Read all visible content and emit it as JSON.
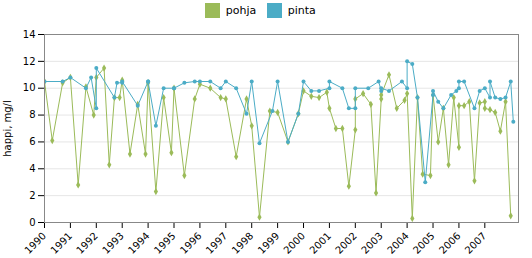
{
  "chart_data": {
    "type": "line",
    "ylabel": "happi, mg/l",
    "xlim": [
      1990,
      2008.3
    ],
    "xticks": [
      1990,
      1991,
      1992,
      1993,
      1994,
      1995,
      1996,
      1997,
      1998,
      1999,
      2000,
      2001,
      2002,
      2003,
      2004,
      2005,
      2006,
      2007
    ],
    "ylim": [
      0,
      14
    ],
    "yticks": [
      0,
      2,
      4,
      6,
      8,
      10,
      12,
      14
    ],
    "grid": "y",
    "legend": "upper center",
    "series": [
      {
        "name": "pohja",
        "color": "#9bbb59",
        "marker": "diamond",
        "x": [
          1990.0,
          1990.3,
          1990.7,
          1991.0,
          1991.3,
          1991.6,
          1991.9,
          1992.0,
          1992.3,
          1992.5,
          1992.7,
          1992.9,
          1993.0,
          1993.3,
          1993.6,
          1993.9,
          1994.0,
          1994.3,
          1994.6,
          1994.9,
          1995.0,
          1995.4,
          1995.8,
          1996.0,
          1996.4,
          1996.8,
          1997.0,
          1997.4,
          1997.8,
          1998.0,
          1998.3,
          1998.7,
          1999.0,
          1999.4,
          1999.8,
          2000.0,
          2000.3,
          2000.6,
          2000.9,
          2001.0,
          2001.25,
          2001.5,
          2001.75,
          2002.0,
          2002.0,
          2002.3,
          2002.6,
          2002.8,
          2003.0,
          2003.0,
          2003.3,
          2003.6,
          2003.9,
          2004.0,
          2004.2,
          2004.4,
          2004.6,
          2004.9,
          2005.0,
          2005.2,
          2005.4,
          2005.6,
          2005.8,
          2006.0,
          2006.0,
          2006.2,
          2006.4,
          2006.6,
          2006.8,
          2007.0,
          2007.0,
          2007.2,
          2007.4,
          2007.6,
          2007.8,
          2008.0
        ],
        "values": [
          10.5,
          6.1,
          10.4,
          10.8,
          2.8,
          10.1,
          8.0,
          10.8,
          11.5,
          4.3,
          9.3,
          9.3,
          10.6,
          5.1,
          8.8,
          5.1,
          10.4,
          2.3,
          9.3,
          5.2,
          10.0,
          3.5,
          9.2,
          10.3,
          10.0,
          9.3,
          9.2,
          4.9,
          9.2,
          7.2,
          0.4,
          8.3,
          8.2,
          6.0,
          8.1,
          9.8,
          9.4,
          9.3,
          9.7,
          8.5,
          7.0,
          7.0,
          2.7,
          6.9,
          9.2,
          9.6,
          8.8,
          2.2,
          9.2,
          9.5,
          11.0,
          8.5,
          9.1,
          9.6,
          0.3,
          9.3,
          3.6,
          3.5,
          9.5,
          6.0,
          8.5,
          4.3,
          9.3,
          5.6,
          8.7,
          8.7,
          9.0,
          3.1,
          8.9,
          9.0,
          8.5,
          8.4,
          8.2,
          6.8,
          9.0,
          0.5
        ]
      },
      {
        "name": "pinta",
        "color": "#4bacc6",
        "marker": "circle",
        "x": [
          1990.0,
          1990.7,
          1991.0,
          1991.6,
          1991.8,
          1992.0,
          1992.0,
          1992.7,
          1992.8,
          1993.0,
          1993.0,
          1993.6,
          1994.0,
          1994.0,
          1994.3,
          1994.6,
          1995.0,
          1995.0,
          1995.4,
          1995.8,
          1996.0,
          1996.4,
          1996.8,
          1997.0,
          1997.4,
          1997.8,
          1998.0,
          1998.3,
          1998.8,
          1999.0,
          1999.4,
          1999.8,
          2000.0,
          2000.3,
          2000.6,
          2001.0,
          2001.0,
          2001.5,
          2001.75,
          2002.0,
          2002.0,
          2002.5,
          2002.9,
          2003.0,
          2003.0,
          2003.3,
          2003.8,
          2004.0,
          2004.0,
          2004.2,
          2004.4,
          2004.7,
          2005.0,
          2005.0,
          2005.2,
          2005.4,
          2005.7,
          2005.9,
          2006.0,
          2006.0,
          2006.2,
          2006.6,
          2006.8,
          2007.0,
          2007.2,
          2007.2,
          2007.4,
          2007.6,
          2007.8,
          2008.0,
          2008.1
        ],
        "values": [
          10.5,
          10.5,
          10.8,
          10.0,
          10.8,
          8.5,
          11.5,
          9.3,
          10.4,
          10.4,
          10.5,
          8.7,
          10.5,
          10.5,
          7.2,
          10.0,
          10.0,
          10.0,
          10.4,
          10.5,
          10.5,
          10.5,
          10.0,
          10.5,
          10.0,
          8.1,
          10.5,
          5.9,
          8.3,
          10.5,
          6.0,
          8.1,
          10.5,
          9.8,
          9.8,
          10.0,
          10.5,
          10.0,
          8.5,
          8.5,
          10.0,
          10.0,
          10.5,
          9.8,
          10.0,
          9.8,
          10.5,
          10.0,
          12.0,
          11.8,
          9.3,
          3.0,
          9.5,
          9.8,
          9.0,
          8.5,
          9.5,
          9.8,
          10.0,
          10.5,
          10.5,
          8.5,
          9.8,
          10.0,
          9.3,
          10.5,
          9.3,
          9.2,
          9.3,
          10.5,
          7.5
        ]
      }
    ]
  }
}
